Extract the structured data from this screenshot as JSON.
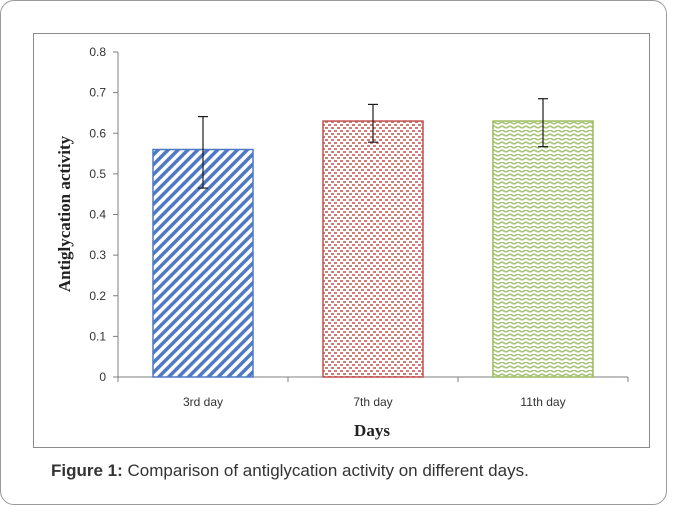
{
  "caption": {
    "label": "Figure 1:",
    "text": " Comparison of antiglycation activity on different days."
  },
  "chart_data": {
    "type": "bar",
    "title": "",
    "xlabel": "Days",
    "ylabel": "Antiglycation activity",
    "ylim": [
      0,
      0.8
    ],
    "yticks": [
      "0",
      "0.1",
      "0.2",
      "0.3",
      "0.4",
      "0.5",
      "0.6",
      "0.7",
      "0.8"
    ],
    "categories": [
      "3rd day",
      "7th day",
      "11th day"
    ],
    "values": [
      0.56,
      0.63,
      0.63
    ],
    "error_low": [
      0.465,
      0.578,
      0.567
    ],
    "error_high": [
      0.641,
      0.671,
      0.685
    ],
    "grid": false,
    "bar_colors": [
      "#4f79c5",
      "#c0504d",
      "#9bbb59"
    ],
    "bar_patterns": [
      "diagonal-stripes",
      "red-dots",
      "green-weave"
    ]
  }
}
